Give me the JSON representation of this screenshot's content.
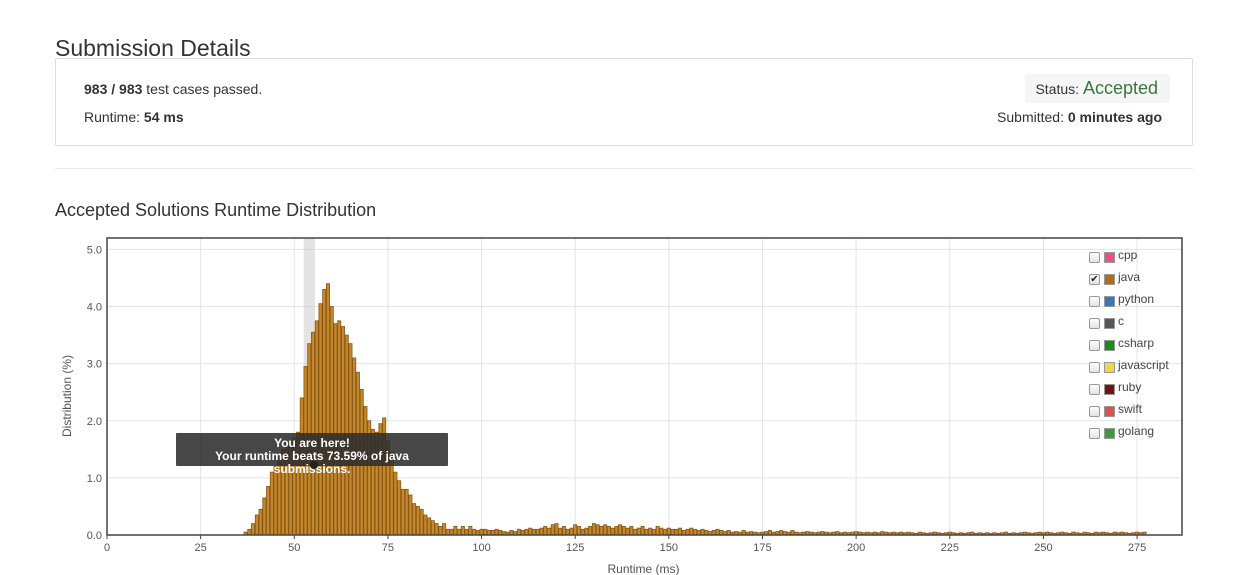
{
  "page": {
    "title": "Submission Details"
  },
  "summary": {
    "passed": "983",
    "sep": " / ",
    "total": "983",
    "passed_suffix": "test cases passed.",
    "runtime_label": "Runtime:",
    "runtime_value": "54 ms",
    "status_label": "Status:",
    "status_value": "Accepted",
    "submitted_label": "Submitted:",
    "submitted_value": "0 minutes ago"
  },
  "section": {
    "title": "Accepted Solutions Runtime Distribution"
  },
  "tooltip": {
    "line1": "You are here!",
    "line2": "Your runtime beats 73.59% of java submissions."
  },
  "legend": [
    {
      "label": "cpp",
      "color": "#e75480",
      "checked": false
    },
    {
      "label": "java",
      "color": "#b06e17",
      "checked": true
    },
    {
      "label": "python",
      "color": "#3a78b5",
      "checked": false
    },
    {
      "label": "c",
      "color": "#555555",
      "checked": false
    },
    {
      "label": "csharp",
      "color": "#1a8a1a",
      "checked": false
    },
    {
      "label": "javascript",
      "color": "#f0d548",
      "checked": false
    },
    {
      "label": "ruby",
      "color": "#701516",
      "checked": false
    },
    {
      "label": "swift",
      "color": "#d9534f",
      "checked": false
    },
    {
      "label": "golang",
      "color": "#3c9c3c",
      "checked": false
    }
  ],
  "colors": {
    "bar": "#c4882d",
    "bar_stroke": "#8a5512",
    "highlight": "#cccccc",
    "accepted": "#3c763d"
  },
  "chart_data": {
    "type": "bar",
    "xlabel": "Runtime (ms)",
    "ylabel": "Distribution (%)",
    "xlim": [
      0,
      287
    ],
    "ylim": [
      0,
      5.2
    ],
    "xticks": [
      "0",
      "25",
      "50",
      "75",
      "100",
      "125",
      "150",
      "175",
      "200",
      "225",
      "250",
      "275"
    ],
    "yticks": [
      "0.0",
      "1.0",
      "2.0",
      "3.0",
      "4.0",
      "5.0"
    ],
    "highlight_ms": 54,
    "series": [
      {
        "name": "java",
        "x_start": 37,
        "x_step": 1,
        "values": [
          0.05,
          0.1,
          0.2,
          0.35,
          0.45,
          0.65,
          0.85,
          1.1,
          1.2,
          1.4,
          1.5,
          1.6,
          1.55,
          1.7,
          1.8,
          2.4,
          2.95,
          3.35,
          3.55,
          3.75,
          4.05,
          4.3,
          4.4,
          4.0,
          3.7,
          3.75,
          3.65,
          3.5,
          3.35,
          3.1,
          2.85,
          2.55,
          2.25,
          2.0,
          1.85,
          1.8,
          1.95,
          2.05,
          1.65,
          1.45,
          1.1,
          0.95,
          0.8,
          0.8,
          0.7,
          0.55,
          0.5,
          0.45,
          0.35,
          0.3,
          0.25,
          0.2,
          0.15,
          0.2,
          0.1,
          0.1,
          0.15,
          0.1,
          0.15,
          0.1,
          0.15,
          0.1,
          0.08,
          0.1,
          0.1,
          0.08,
          0.08,
          0.1,
          0.08,
          0.06,
          0.05,
          0.08,
          0.06,
          0.1,
          0.08,
          0.1,
          0.12,
          0.1,
          0.1,
          0.12,
          0.15,
          0.12,
          0.18,
          0.2,
          0.12,
          0.15,
          0.1,
          0.12,
          0.18,
          0.15,
          0.1,
          0.12,
          0.15,
          0.2,
          0.18,
          0.15,
          0.18,
          0.15,
          0.12,
          0.15,
          0.18,
          0.15,
          0.12,
          0.15,
          0.1,
          0.12,
          0.15,
          0.1,
          0.12,
          0.1,
          0.15,
          0.12,
          0.1,
          0.12,
          0.1,
          0.1,
          0.12,
          0.08,
          0.1,
          0.12,
          0.1,
          0.08,
          0.1,
          0.08,
          0.06,
          0.08,
          0.1,
          0.08,
          0.06,
          0.08,
          0.05,
          0.06,
          0.05,
          0.08,
          0.05,
          0.06,
          0.05,
          0.04,
          0.05,
          0.06,
          0.08,
          0.05,
          0.06,
          0.08,
          0.06,
          0.05,
          0.08,
          0.05,
          0.04,
          0.05,
          0.06,
          0.05,
          0.04,
          0.05,
          0.06,
          0.05,
          0.04,
          0.05,
          0.06,
          0.04,
          0.05,
          0.04,
          0.05,
          0.06,
          0.05,
          0.04,
          0.05,
          0.04,
          0.05,
          0.04,
          0.06,
          0.05,
          0.04,
          0.05,
          0.04,
          0.05,
          0.04,
          0.05,
          0.04,
          0.03,
          0.05,
          0.04,
          0.03,
          0.04,
          0.05,
          0.04,
          0.03,
          0.04,
          0.05,
          0.04,
          0.03,
          0.04,
          0.03,
          0.04,
          0.05,
          0.03,
          0.04,
          0.03,
          0.04,
          0.03,
          0.04,
          0.03,
          0.04,
          0.05,
          0.03,
          0.04,
          0.03,
          0.04,
          0.05,
          0.04,
          0.03,
          0.04,
          0.05,
          0.04,
          0.05,
          0.04,
          0.03,
          0.04,
          0.05,
          0.04,
          0.03,
          0.05,
          0.04,
          0.03,
          0.05,
          0.04,
          0.03,
          0.05,
          0.04,
          0.05,
          0.04,
          0.03,
          0.05,
          0.04,
          0.05,
          0.04,
          0.03,
          0.04,
          0.05,
          0.04,
          0.05
        ]
      }
    ]
  }
}
